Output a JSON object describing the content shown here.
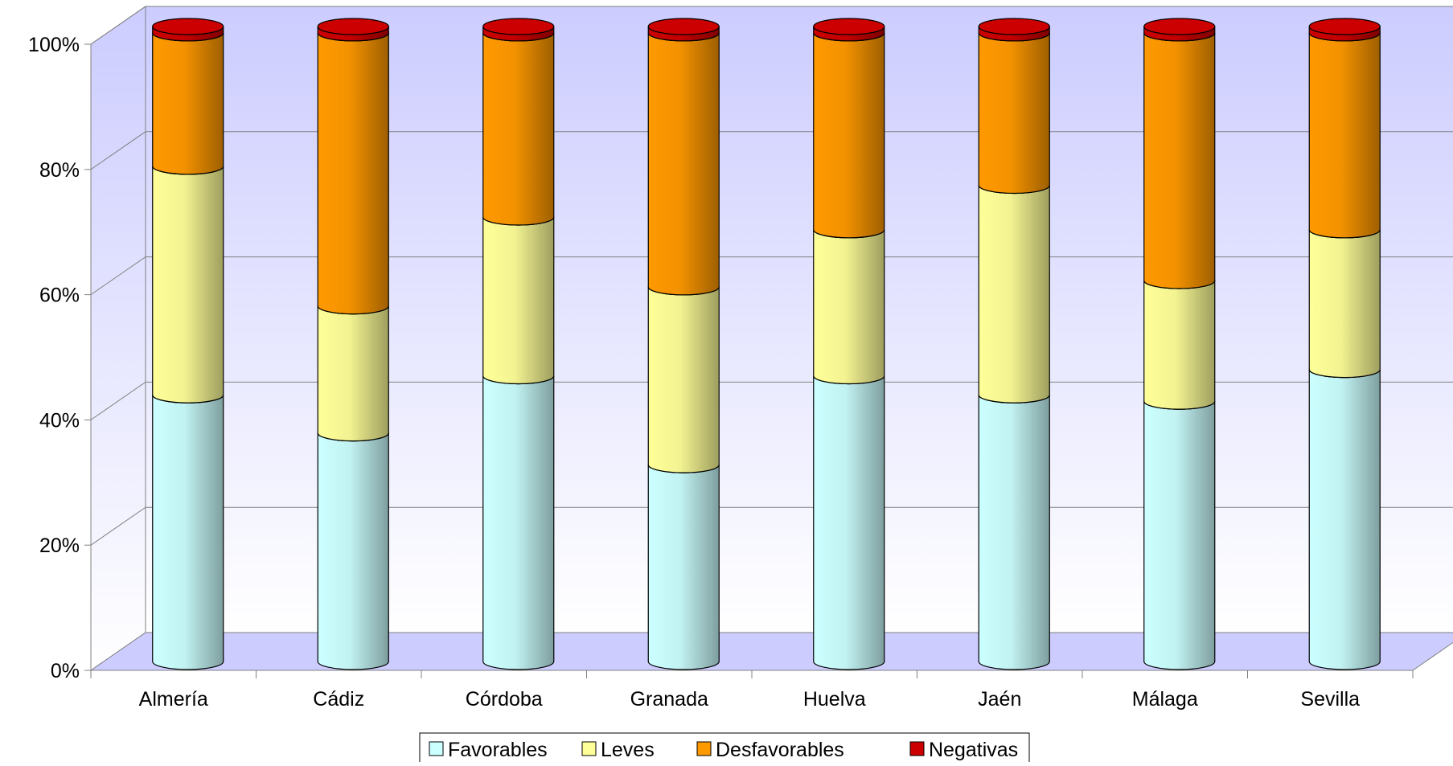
{
  "chart_data": {
    "type": "bar",
    "stacked": "percent",
    "three_d": true,
    "categories": [
      "Almería",
      "Cádiz",
      "Córdoba",
      "Granada",
      "Huelva",
      "Jaén",
      "Málaga",
      "Sevilla"
    ],
    "series": [
      {
        "name": "Favorables",
        "values": [
          42,
          36,
          45,
          31,
          45,
          42,
          41,
          46
        ]
      },
      {
        "name": "Leves",
        "values": [
          36,
          20,
          25,
          28,
          23,
          33,
          19,
          22
        ]
      },
      {
        "name": "Desfavorables",
        "values": [
          21,
          43,
          29,
          40,
          31,
          24,
          39,
          31
        ]
      },
      {
        "name": "Negativas",
        "values": [
          1,
          1,
          1,
          1,
          1,
          1,
          1,
          1
        ]
      }
    ],
    "y_ticks": [
      "0%",
      "20%",
      "40%",
      "60%",
      "80%",
      "100%"
    ],
    "ylim": [
      0,
      100
    ],
    "grid": true,
    "legend_position": "bottom",
    "colors": {
      "Favorables": "#ccffff",
      "Leves": "#ffff99",
      "Desfavorables": "#ff9900",
      "Negativas": "#cc0000",
      "backwall_top": "#ccccff",
      "backwall_bottom": "#ffffff",
      "floor": "#ccccff"
    }
  }
}
